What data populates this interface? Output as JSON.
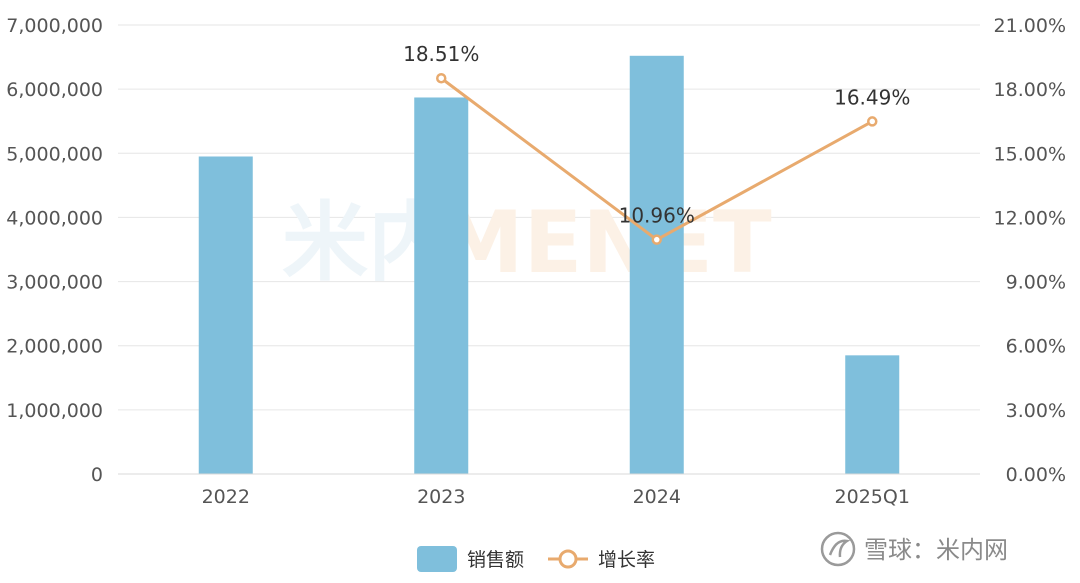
{
  "chart_data": {
    "type": "bar",
    "categories": [
      "2022",
      "2023",
      "2024",
      "2025Q1"
    ],
    "series": [
      {
        "name": "销售额",
        "type": "bar",
        "axis": "left",
        "values": [
          4950000,
          5870000,
          6520000,
          1850000
        ]
      },
      {
        "name": "增长率",
        "type": "line",
        "axis": "right",
        "values": [
          null,
          18.51,
          10.96,
          16.49
        ],
        "labels": [
          "",
          "18.51%",
          "10.96%",
          "16.49%"
        ]
      }
    ],
    "y_left": {
      "ylim": [
        0,
        7000000
      ],
      "ticks": [
        0,
        1000000,
        2000000,
        3000000,
        4000000,
        5000000,
        6000000,
        7000000
      ],
      "tick_labels": [
        "0",
        "1,000,000",
        "2,000,000",
        "3,000,000",
        "4,000,000",
        "5,000,000",
        "6,000,000",
        "7,000,000"
      ]
    },
    "y_right": {
      "ylim": [
        0,
        21
      ],
      "ticks": [
        0,
        3,
        6,
        9,
        12,
        15,
        18,
        21
      ],
      "tick_labels": [
        "0.00%",
        "3.00%",
        "6.00%",
        "9.00%",
        "12.00%",
        "15.00%",
        "18.00%",
        "21.00%"
      ]
    },
    "grid": true,
    "legend_placement": "bottom-center",
    "colors": {
      "bar": "#7fbfdc",
      "line": "#e8aa6e",
      "grid": "#e6e6e6"
    }
  },
  "watermark": {
    "logo_text": "米内",
    "brand_text": "MENET"
  },
  "footer": {
    "logo_icon": "snowball-icon",
    "text": "雪球：米内网"
  }
}
